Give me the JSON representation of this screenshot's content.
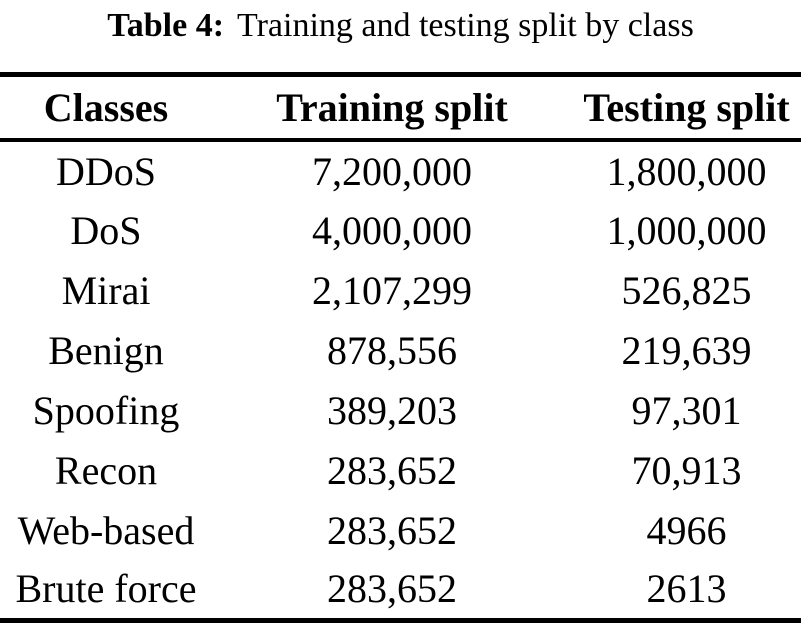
{
  "caption": {
    "label": "Table 4:",
    "title": "Training and testing split by class"
  },
  "table": {
    "columns": [
      "Classes",
      "Training split",
      "Testing split"
    ],
    "rows": [
      {
        "class": "DDoS",
        "training": "7,200,000",
        "testing": "1,800,000"
      },
      {
        "class": "DoS",
        "training": "4,000,000",
        "testing": "1,000,000"
      },
      {
        "class": "Mirai",
        "training": "2,107,299",
        "testing": "526,825"
      },
      {
        "class": "Benign",
        "training": "878,556",
        "testing": "219,639"
      },
      {
        "class": "Spoofing",
        "training": "389,203",
        "testing": "97,301"
      },
      {
        "class": "Recon",
        "training": "283,652",
        "testing": "70,913"
      },
      {
        "class": "Web-based",
        "training": "283,652",
        "testing": "4966"
      },
      {
        "class": "Brute force",
        "training": "283,652",
        "testing": "2613"
      }
    ]
  },
  "colors": {
    "text": "#000000",
    "background": "#ffffff",
    "rule": "#000000"
  }
}
